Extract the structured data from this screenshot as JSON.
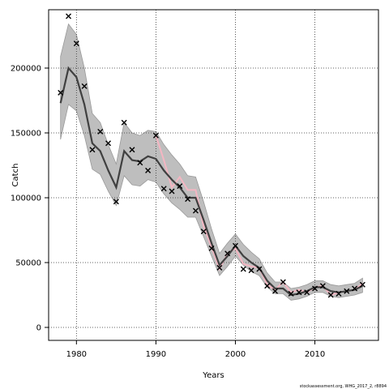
{
  "chart_data": {
    "type": "line",
    "title": "",
    "xlabel": "Years",
    "ylabel": "Catch",
    "xlim": [
      1976.5,
      2018
    ],
    "ylim": [
      -10000,
      245000
    ],
    "x_ticks": [
      1980,
      1990,
      2000,
      2010
    ],
    "y_ticks": [
      0,
      50000,
      100000,
      150000,
      200000
    ],
    "x_tick_labels": [
      "1980",
      "1990",
      "2000",
      "2010"
    ],
    "y_tick_labels": [
      "0",
      "50000",
      "100000",
      "150000",
      "200000"
    ],
    "grid": true,
    "legend": "none",
    "footer": "stockassessment.org, WHG_2017_2, r8894",
    "colors": {
      "estimate": "#404040",
      "band": "#bebebe",
      "band_edge": "#999999",
      "observed_line": "#f4b6c2",
      "observed_marks": "#000000"
    },
    "estimate": {
      "x": [
        1978,
        1979,
        1980,
        1981,
        1982,
        1983,
        1984,
        1985,
        1986,
        1987,
        1988,
        1989,
        1990,
        1991,
        1992,
        1993,
        1994,
        1995,
        1996,
        1997,
        1998,
        1999,
        2000,
        2001,
        2002,
        2003,
        2004,
        2005,
        2006,
        2007,
        2008,
        2009,
        2010,
        2011,
        2012,
        2013,
        2014,
        2015,
        2016
      ],
      "y": [
        173000,
        200000,
        193000,
        172000,
        142000,
        136000,
        121000,
        108000,
        136000,
        129000,
        128000,
        132000,
        130000,
        121000,
        114000,
        108000,
        100000,
        100000,
        83000,
        65000,
        48000,
        55000,
        63000,
        55000,
        50000,
        46000,
        36000,
        30000,
        30000,
        25000,
        26000,
        28000,
        31000,
        31000,
        28000,
        27000,
        28000,
        29000,
        32000
      ]
    },
    "band": {
      "lower": [
        145000,
        172000,
        167000,
        148000,
        122000,
        118000,
        105000,
        94000,
        117000,
        110000,
        109000,
        114000,
        112000,
        103000,
        96000,
        91000,
        85000,
        85000,
        70000,
        55000,
        40000,
        47000,
        55000,
        48000,
        43000,
        40000,
        31000,
        26000,
        26000,
        21000,
        22000,
        24000,
        27000,
        27000,
        24000,
        23000,
        24000,
        25000,
        27000
      ],
      "upper": [
        209000,
        234000,
        226000,
        200000,
        165000,
        158000,
        141000,
        126000,
        158000,
        150000,
        148000,
        152000,
        151000,
        141000,
        133000,
        126000,
        117000,
        116000,
        97000,
        76000,
        57000,
        65000,
        72000,
        64000,
        58000,
        53000,
        42000,
        35000,
        35000,
        30000,
        31000,
        33000,
        36000,
        36000,
        33000,
        32000,
        33000,
        34000,
        38000
      ]
    },
    "observed_line": {
      "x": [
        1990,
        1991,
        1992,
        1993,
        1994,
        1995,
        1996,
        1997,
        1998,
        1999,
        2000,
        2001,
        2002,
        2003,
        2004,
        2005,
        2006,
        2007,
        2008,
        2009,
        2010,
        2011,
        2012,
        2013,
        2014,
        2015,
        2016
      ],
      "y": [
        148000,
        129000,
        108000,
        116000,
        106000,
        106000,
        78000,
        62000,
        45000,
        57000,
        61000,
        49000,
        47000,
        46000,
        33000,
        29000,
        35000,
        27000,
        29000,
        27000,
        31000,
        32000,
        25000,
        27000,
        28000,
        29000,
        34000
      ]
    },
    "observed_points": {
      "x": [
        1978,
        1979,
        1980,
        1981,
        1982,
        1983,
        1984,
        1985,
        1986,
        1987,
        1988,
        1989,
        1990,
        1991,
        1992,
        1993,
        1994,
        1995,
        1996,
        1997,
        1998,
        1999,
        2000,
        2001,
        2002,
        2003,
        2004,
        2005,
        2006,
        2007,
        2008,
        2009,
        2010,
        2011,
        2012,
        2013,
        2014,
        2015,
        2016
      ],
      "y": [
        181000,
        240000,
        219000,
        186000,
        137000,
        151000,
        142000,
        97000,
        158000,
        137000,
        127000,
        121000,
        148000,
        107000,
        105000,
        109000,
        99000,
        90000,
        74000,
        61000,
        46000,
        57000,
        63000,
        45000,
        44000,
        45000,
        32000,
        28000,
        35000,
        26000,
        27000,
        27000,
        30000,
        32000,
        25000,
        26000,
        28000,
        30000,
        33000
      ]
    }
  }
}
